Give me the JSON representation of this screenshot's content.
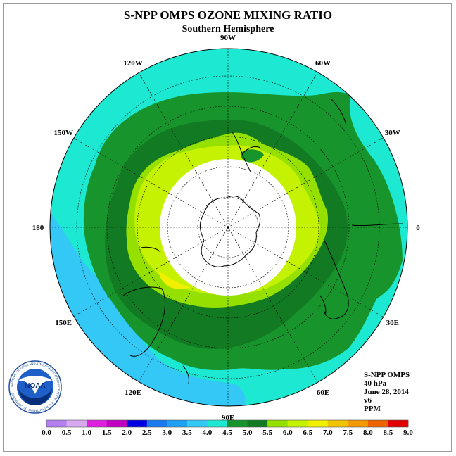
{
  "title": "S-NPP OMPS OZONE MIXING RATIO",
  "subtitle": "Southern Hemisphere",
  "longitude_labels": [
    {
      "text": "90W",
      "lon": -90
    },
    {
      "text": "60W",
      "lon": -60
    },
    {
      "text": "30W",
      "lon": -30
    },
    {
      "text": "0",
      "lon": 0
    },
    {
      "text": "30E",
      "lon": 30
    },
    {
      "text": "60E",
      "lon": 60
    },
    {
      "text": "90E",
      "lon": 90
    },
    {
      "text": "120E",
      "lon": 120
    },
    {
      "text": "150E",
      "lon": 150
    },
    {
      "text": "180",
      "lon": 180
    },
    {
      "text": "150W",
      "lon": -150
    },
    {
      "text": "120W",
      "lon": -120
    }
  ],
  "info": {
    "instrument": "S-NPP OMPS",
    "level": "40 hPa",
    "date": "June 28, 2014",
    "version": "v6",
    "units": "PPM"
  },
  "logo": {
    "text": "NOAA",
    "ring_text": "NATIONAL OCEANIC AND ATMOSPHERIC ADMINISTRATION · U.S. DEPARTMENT OF COMMERCE"
  },
  "colorbar": {
    "ticks": [
      "0.0",
      "0.5",
      "1.0",
      "1.5",
      "2.0",
      "2.5",
      "3.0",
      "3.5",
      "4.0",
      "4.5",
      "5.0",
      "5.5",
      "6.0",
      "6.5",
      "7.0",
      "7.5",
      "8.0",
      "8.5",
      "9.0"
    ],
    "colors": [
      "#b57ff0",
      "#d8a8f0",
      "#e020e0",
      "#c000c0",
      "#0000e0",
      "#1a7aee",
      "#1ea0f5",
      "#33c8f5",
      "#1de8d2",
      "#18942c",
      "#117a23",
      "#96e000",
      "#c4f200",
      "#f0f000",
      "#f2c400",
      "#f29a00",
      "#f06400",
      "#e00000",
      "#8a5a3c"
    ]
  }
}
